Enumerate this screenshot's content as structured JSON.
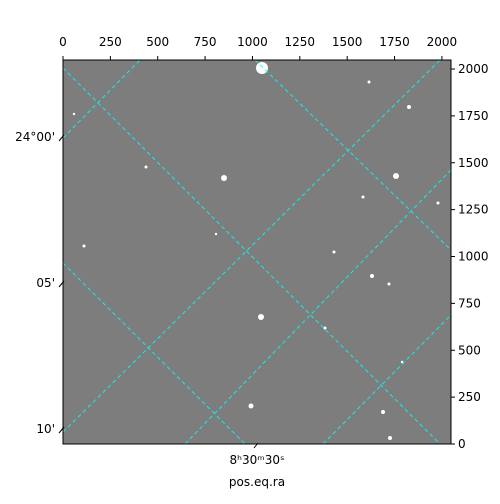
{
  "chart_data": {
    "type": "image",
    "xlabel": "pos.eq.ra",
    "xlim": [
      0,
      2048
    ],
    "xticks": [
      0,
      250,
      500,
      750,
      1000,
      1250,
      1500,
      1750,
      2000
    ],
    "ylim": [
      0,
      2048
    ],
    "yticks": [
      0,
      250,
      500,
      750,
      1000,
      1250,
      1500,
      1750,
      2000
    ],
    "world_xticks": [
      "8ʰ30ᵐ30ˢ"
    ],
    "world_yticks": [
      "24°00'",
      "05'",
      "10'"
    ],
    "grid_color": "#00ffff"
  }
}
